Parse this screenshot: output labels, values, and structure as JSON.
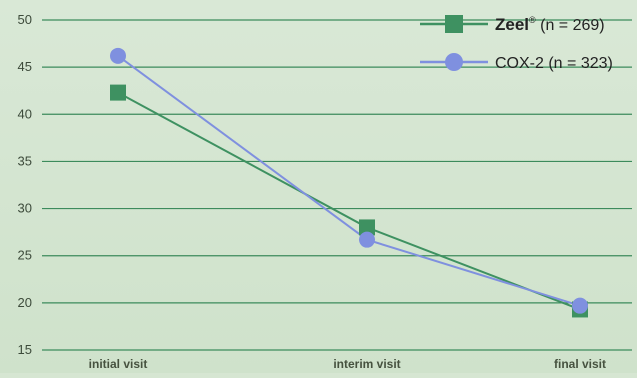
{
  "chart_data": {
    "type": "line",
    "categories": [
      "initial visit",
      "interim visit",
      "final visit"
    ],
    "yticks": [
      15,
      20,
      25,
      30,
      35,
      40,
      45,
      50
    ],
    "ylim": [
      15,
      50
    ],
    "grid": true,
    "legend_position": "top-right",
    "series": [
      {
        "name": "Zeel",
        "name_mark": "®",
        "name_suffix": "(n = 269)",
        "marker": "square",
        "color": "#3e9161",
        "values": [
          42.3,
          28.0,
          19.3
        ]
      },
      {
        "name": "COX-2",
        "name_suffix": "(n = 323)",
        "marker": "circle",
        "color": "#7f90df",
        "values": [
          46.2,
          26.7,
          19.7
        ]
      }
    ]
  },
  "colors": {
    "background": "#d5e6d1",
    "gridline": "#3c8b5c",
    "axis_text": "#3c4a3a"
  }
}
